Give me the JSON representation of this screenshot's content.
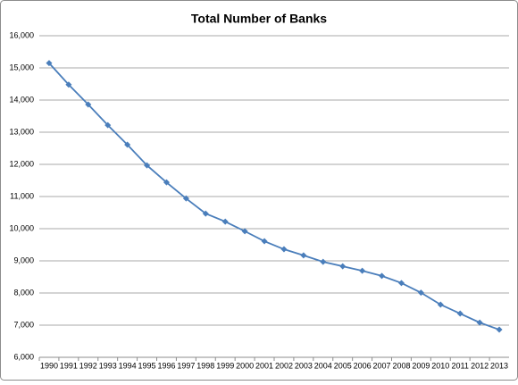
{
  "chart_data": {
    "type": "line",
    "title": "Total Number of Banks",
    "categories": [
      "1990",
      "1991",
      "1992",
      "1993",
      "1994",
      "1995",
      "1996",
      "1997",
      "1998",
      "1999",
      "2000",
      "2001",
      "2002",
      "2003",
      "2004",
      "2005",
      "2006",
      "2007",
      "2008",
      "2009",
      "2010",
      "2011",
      "2012",
      "2013"
    ],
    "values": [
      15150,
      14480,
      13860,
      13220,
      12610,
      11970,
      11440,
      10940,
      10470,
      10220,
      9920,
      9610,
      9360,
      9170,
      8970,
      8830,
      8690,
      8530,
      8310,
      8010,
      7640,
      7360,
      7080,
      6860
    ],
    "color": "#4a7ebb",
    "ylim": [
      6000,
      16000
    ],
    "yticks": [
      {
        "value": 6000,
        "label": "6,000"
      },
      {
        "value": 7000,
        "label": "7,000"
      },
      {
        "value": 8000,
        "label": "8,000"
      },
      {
        "value": 9000,
        "label": "9,000"
      },
      {
        "value": 10000,
        "label": "10,000"
      },
      {
        "value": 11000,
        "label": "11,000"
      },
      {
        "value": 12000,
        "label": "12,000"
      },
      {
        "value": 13000,
        "label": "13,000"
      },
      {
        "value": 14000,
        "label": "14,000"
      },
      {
        "value": 15000,
        "label": "15,000"
      },
      {
        "value": 16000,
        "label": "16,000"
      }
    ],
    "grid": true
  }
}
